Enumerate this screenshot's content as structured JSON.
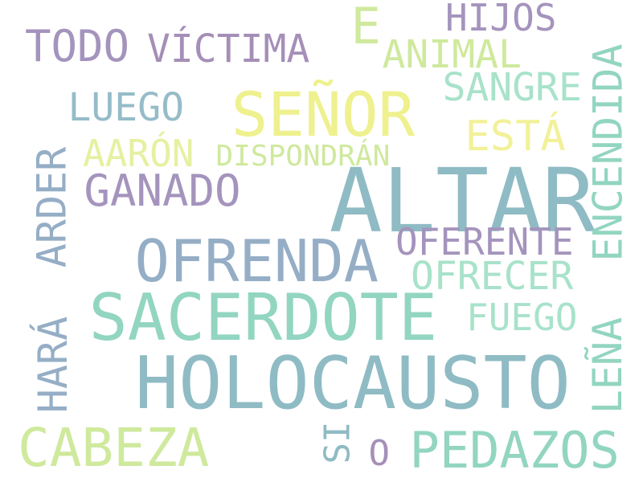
{
  "words": [
    {
      "id": "altar",
      "text": "ALTAR",
      "color": "#8fbbc4"
    },
    {
      "id": "holocausto",
      "text": "HOLOCAUSTO",
      "color": "#8fbbc4"
    },
    {
      "id": "sacerdote",
      "text": "SACERDOTE",
      "color": "#92d5c1"
    },
    {
      "id": "ofrenda",
      "text": "OFRENDA",
      "color": "#95aec6"
    },
    {
      "id": "senor",
      "text": "SEÑOR",
      "color": "#eef18e"
    },
    {
      "id": "cabeza",
      "text": "CABEZA",
      "color": "#cfe99d"
    },
    {
      "id": "pedazos",
      "text": "PEDAZOS",
      "color": "#92d5c1"
    },
    {
      "id": "ganado",
      "text": "GANADO",
      "color": "#a494bd"
    },
    {
      "id": "todo",
      "text": "TODO",
      "color": "#a494bd"
    },
    {
      "id": "victima",
      "text": "VÍCTIMA",
      "color": "#a58fb8"
    },
    {
      "id": "e",
      "text": "E",
      "color": "#cfe99d"
    },
    {
      "id": "hijos",
      "text": "HIJOS",
      "color": "#a494bd"
    },
    {
      "id": "animal",
      "text": "ANIMAL",
      "color": "#cfe99d"
    },
    {
      "id": "sangre",
      "text": "SANGRE",
      "color": "#a8e2ca"
    },
    {
      "id": "esta",
      "text": "ESTÁ",
      "color": "#f2f199"
    },
    {
      "id": "luego",
      "text": "LUEGO",
      "color": "#95bcc8"
    },
    {
      "id": "aaron",
      "text": "AARÓN",
      "color": "#e6f0a0"
    },
    {
      "id": "dispondran",
      "text": "DISPONDRÁN",
      "color": "#cfe99d"
    },
    {
      "id": "oferente",
      "text": "OFERENTE",
      "color": "#a494bd"
    },
    {
      "id": "ofrecer",
      "text": "OFRECER",
      "color": "#a8e2ca"
    },
    {
      "id": "fuego",
      "text": "FUEGO",
      "color": "#a8e2ca"
    },
    {
      "id": "encendida",
      "text": "ENCENDIDA",
      "color": "#92d5c1"
    },
    {
      "id": "lena",
      "text": "LEÑA",
      "color": "#92d5c1"
    },
    {
      "id": "arder",
      "text": "ARDER",
      "color": "#95aec6"
    },
    {
      "id": "hara",
      "text": "HARÁ",
      "color": "#95aec6"
    },
    {
      "id": "si",
      "text": "SI",
      "color": "#8fbbc4"
    },
    {
      "id": "o",
      "text": "O",
      "color": "#a58fb8"
    }
  ]
}
